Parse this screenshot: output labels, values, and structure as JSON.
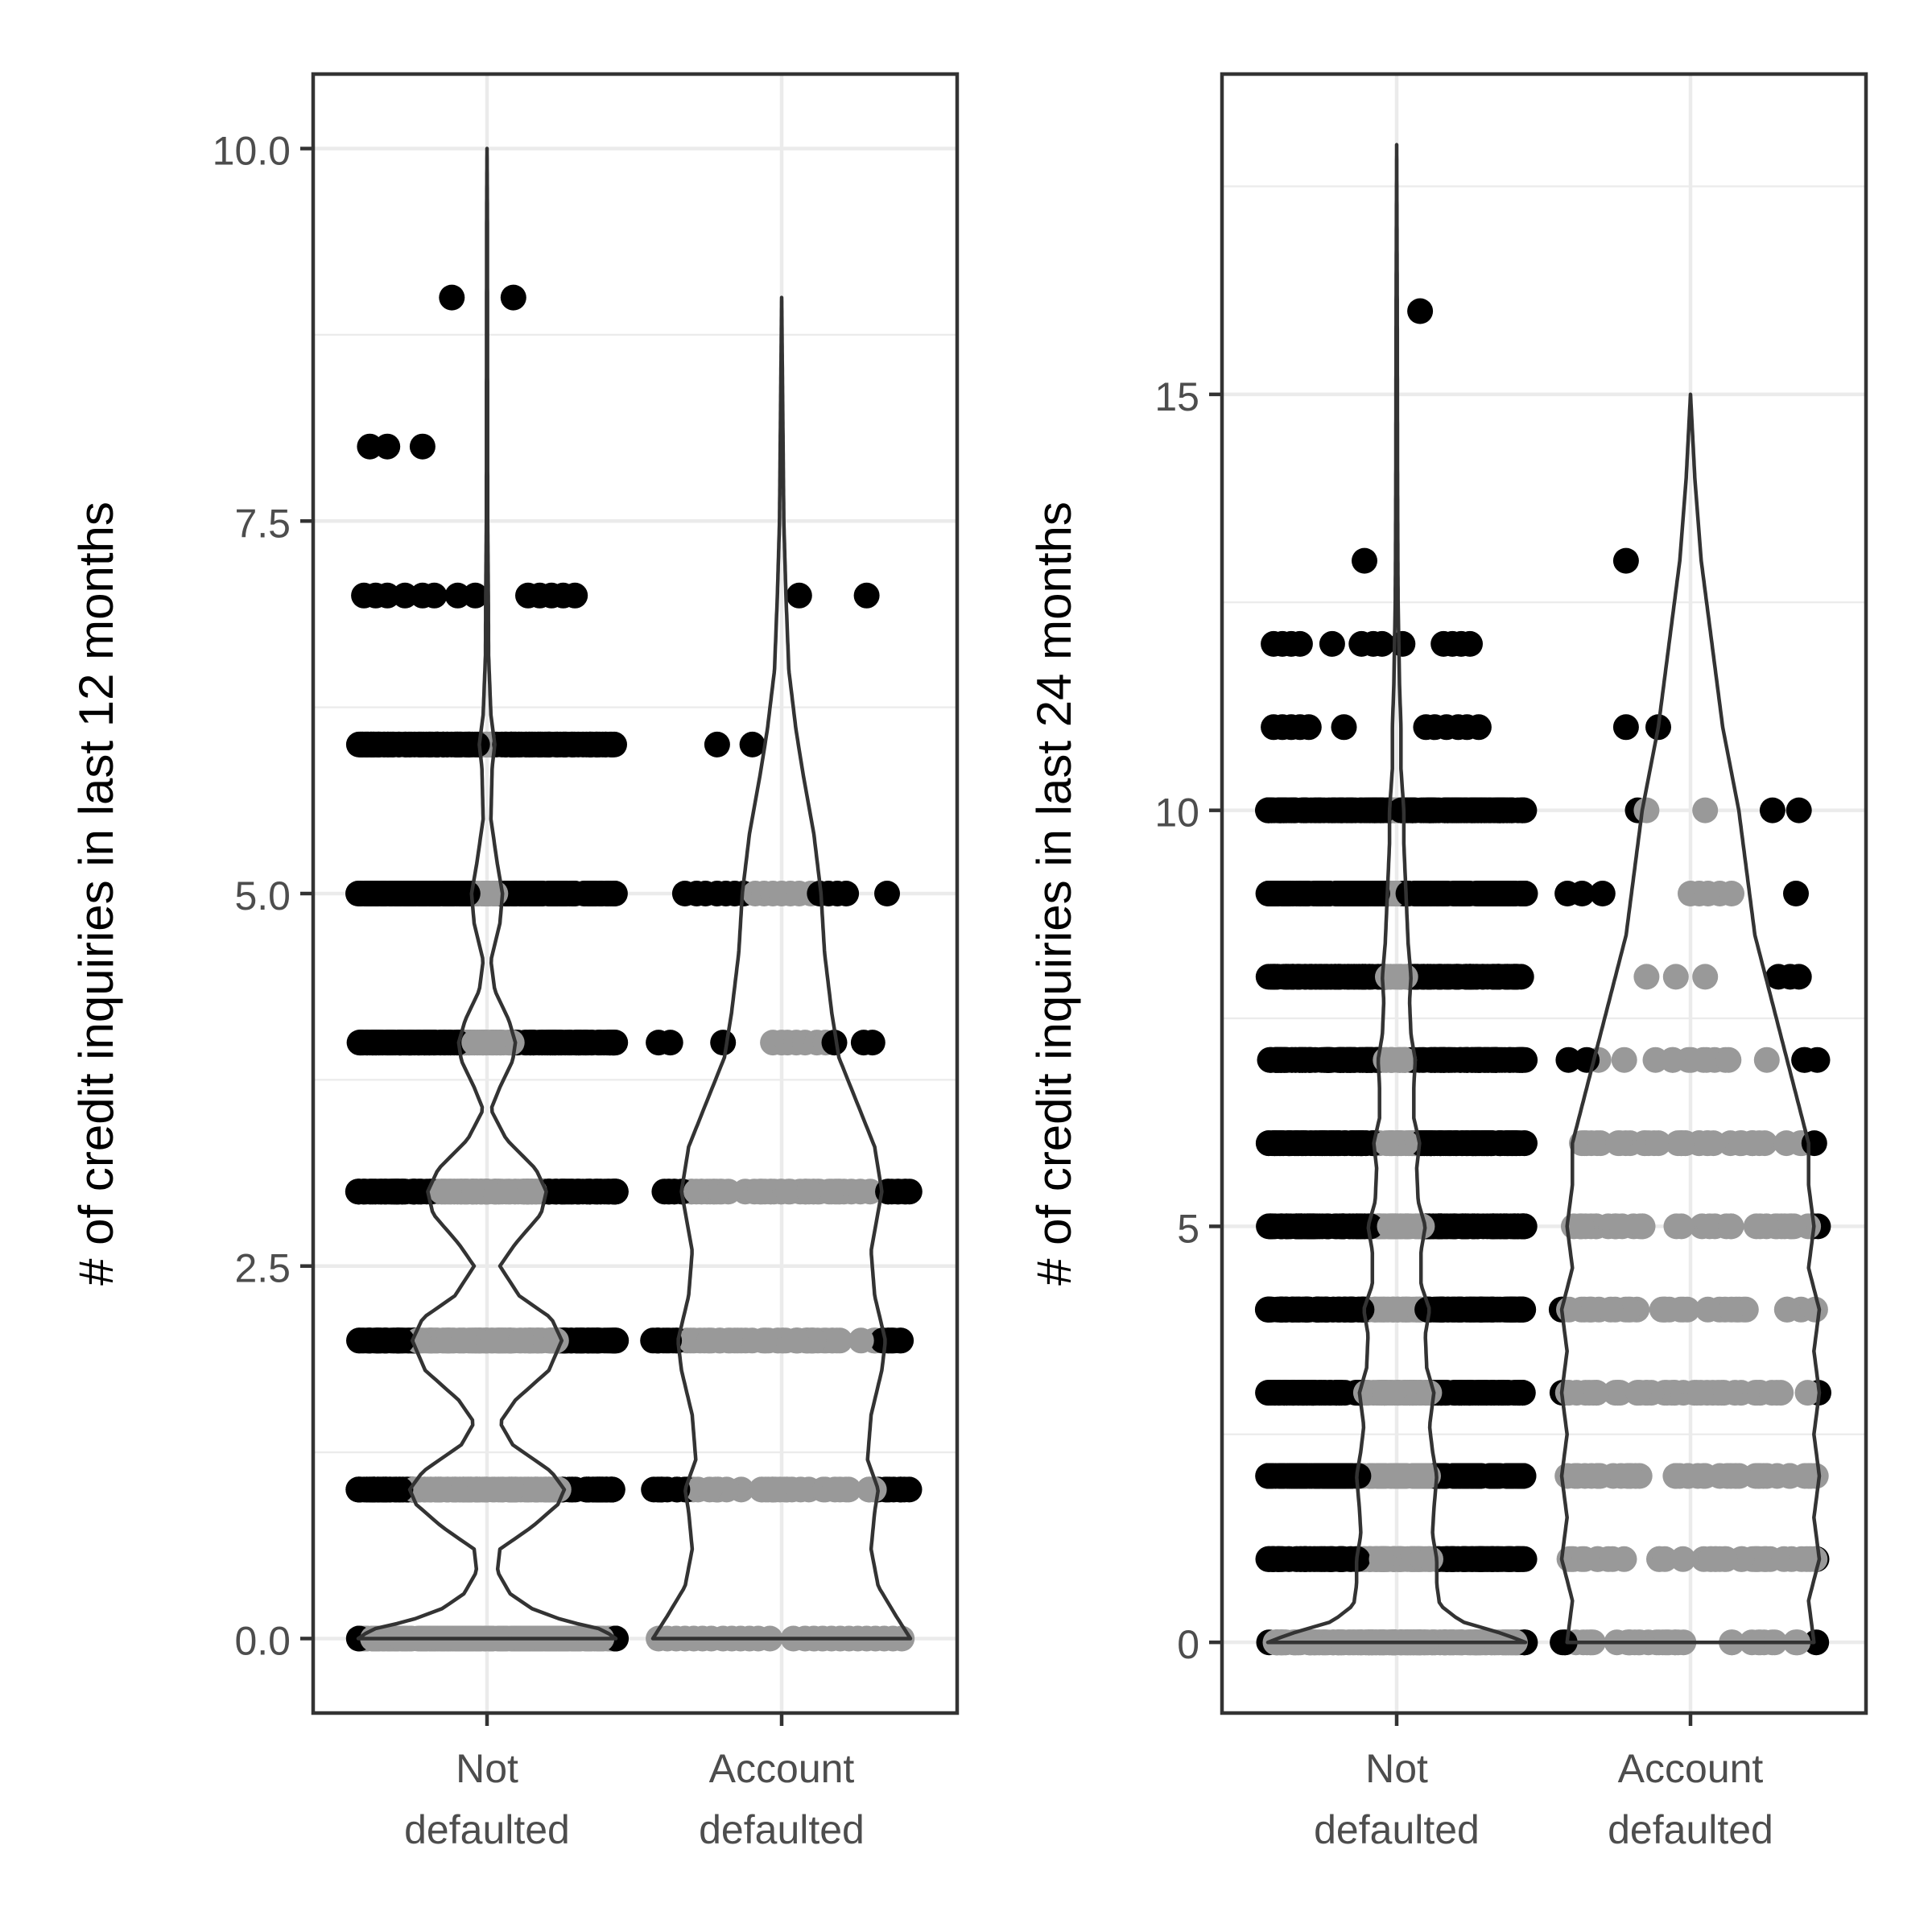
{
  "chart_data": [
    {
      "type": "violin",
      "panel": "left",
      "ylabel": "# of credit inquiries in last 12 months",
      "xlabel": "",
      "categories": [
        "Not\ndefaulted",
        "Account\ndefaulted"
      ],
      "ylim": [
        -0.5,
        10.5
      ],
      "yticks": [
        0.0,
        2.5,
        5.0,
        7.5,
        10.0
      ],
      "ytick_labels": [
        "0.0",
        "2.5",
        "5.0",
        "7.5",
        "10.0"
      ],
      "grid": true,
      "groups": [
        {
          "name": "Not\ndefaulted",
          "violin_max": 10,
          "density": [
            [
              0,
              1.0
            ],
            [
              0.06,
              0.9
            ],
            [
              0.12,
              0.6
            ],
            [
              0.2,
              0.35
            ],
            [
              0.3,
              0.18
            ],
            [
              0.45,
              0.08
            ],
            [
              0.6,
              0.1
            ],
            [
              0.75,
              0.35
            ],
            [
              0.9,
              0.55
            ],
            [
              1.0,
              0.6
            ],
            [
              1.12,
              0.5
            ],
            [
              1.3,
              0.2
            ],
            [
              1.45,
              0.1
            ],
            [
              1.6,
              0.22
            ],
            [
              1.8,
              0.48
            ],
            [
              2.0,
              0.58
            ],
            [
              2.15,
              0.5
            ],
            [
              2.3,
              0.25
            ],
            [
              2.5,
              0.1
            ],
            [
              2.65,
              0.22
            ],
            [
              2.85,
              0.42
            ],
            [
              3.0,
              0.46
            ],
            [
              3.15,
              0.38
            ],
            [
              3.35,
              0.15
            ],
            [
              3.55,
              0.03
            ],
            [
              3.7,
              0.1
            ],
            [
              3.88,
              0.2
            ],
            [
              4.0,
              0.22
            ],
            [
              4.15,
              0.17
            ],
            [
              4.35,
              0.06
            ],
            [
              4.55,
              0.03
            ],
            [
              4.8,
              0.1
            ],
            [
              5.0,
              0.12
            ],
            [
              5.2,
              0.08
            ],
            [
              5.5,
              0.03
            ],
            [
              5.85,
              0.04
            ],
            [
              6.0,
              0.06
            ],
            [
              6.2,
              0.03
            ],
            [
              6.6,
              0.012
            ],
            [
              7.0,
              0.01
            ],
            [
              7.5,
              0.005
            ],
            [
              8.5,
              0.004
            ],
            [
              9.5,
              0.003
            ],
            [
              10.0,
              0.0
            ]
          ],
          "points": [
            {
              "y": 0,
              "count": 200
            },
            {
              "y": 1,
              "count": 200
            },
            {
              "y": 2,
              "count": 200
            },
            {
              "y": 3,
              "count": 200
            },
            {
              "y": 4,
              "count": 200
            },
            {
              "y": 5,
              "count": 200
            },
            {
              "y": 6,
              "count": 150
            },
            {
              "y": 7,
              "x_offsets": [
                -0.42,
                -0.38,
                -0.34,
                -0.28,
                -0.22,
                -0.18,
                -0.1,
                -0.04,
                0.14,
                0.18,
                0.22,
                0.26,
                0.3
              ]
            },
            {
              "y": 8,
              "x_offsets": [
                -0.4,
                -0.34,
                -0.22
              ]
            },
            {
              "y": 9,
              "x_offsets": [
                -0.12,
                0.09
              ]
            }
          ]
        },
        {
          "name": "Account\ndefaulted",
          "violin_max": 9,
          "density": [
            [
              0,
              0.36
            ],
            [
              0.15,
              0.32
            ],
            [
              0.35,
              0.27
            ],
            [
              0.6,
              0.25
            ],
            [
              0.85,
              0.26
            ],
            [
              1.0,
              0.27
            ],
            [
              1.2,
              0.24
            ],
            [
              1.5,
              0.25
            ],
            [
              1.8,
              0.28
            ],
            [
              2.0,
              0.29
            ],
            [
              2.3,
              0.26
            ],
            [
              2.6,
              0.25
            ],
            [
              3.0,
              0.28
            ],
            [
              3.3,
              0.26
            ],
            [
              3.6,
              0.21
            ],
            [
              3.9,
              0.16
            ],
            [
              4.2,
              0.14
            ],
            [
              4.6,
              0.12
            ],
            [
              5.0,
              0.11
            ],
            [
              5.4,
              0.09
            ],
            [
              5.8,
              0.06
            ],
            [
              6.1,
              0.04
            ],
            [
              6.5,
              0.02
            ],
            [
              7.0,
              0.012
            ],
            [
              7.5,
              0.006
            ],
            [
              8.0,
              0.004
            ],
            [
              9.0,
              0.0
            ]
          ],
          "points": [
            {
              "y": 0,
              "x_offsets": [
                -0.42,
                -0.39,
                -0.36,
                -0.33,
                -0.3,
                -0.27,
                -0.24,
                -0.2,
                -0.17,
                -0.14,
                -0.11,
                -0.08,
                -0.04,
                0.04,
                0.08,
                0.11,
                0.14,
                0.17,
                0.2,
                0.23,
                0.26,
                0.29,
                0.32,
                0.35,
                0.38,
                0.41
              ]
            },
            {
              "y": 1,
              "count": 55
            },
            {
              "y": 2,
              "count": 70
            },
            {
              "y": 3,
              "count": 60
            },
            {
              "y": 4,
              "x_offsets": [
                -0.42,
                -0.38,
                -0.2,
                -0.03,
                0.0,
                0.02,
                0.05,
                0.08,
                0.12,
                0.15,
                0.18,
                0.28,
                0.31
              ]
            },
            {
              "y": 5,
              "x_offsets": [
                -0.33,
                -0.29,
                -0.26,
                -0.22,
                -0.19,
                -0.16,
                -0.13,
                -0.09,
                -0.06,
                -0.03,
                0.0,
                0.03,
                0.06,
                0.1,
                0.13,
                0.16,
                0.19,
                0.22,
                0.36
              ]
            },
            {
              "y": 6,
              "x_offsets": [
                -0.22,
                -0.1
              ]
            },
            {
              "y": 7,
              "x_offsets": [
                0.06,
                0.29
              ]
            }
          ]
        }
      ]
    },
    {
      "type": "violin",
      "panel": "right",
      "ylabel": "# of credit inquiries in last 24 months",
      "xlabel": "",
      "categories": [
        "Not\ndefaulted",
        "Account\ndefaulted"
      ],
      "ylim": [
        -0.85,
        18.85
      ],
      "yticks": [
        0,
        5,
        10,
        15
      ],
      "ytick_labels": [
        "0",
        "5",
        "10",
        "15"
      ],
      "grid": true,
      "groups": [
        {
          "name": "Not\ndefaulted",
          "violin_max": 18,
          "density": [
            [
              0,
              0.9
            ],
            [
              0.1,
              0.75
            ],
            [
              0.25,
              0.45
            ],
            [
              0.45,
              0.3
            ],
            [
              0.7,
              0.28
            ],
            [
              1.0,
              0.28
            ],
            [
              1.3,
              0.25
            ],
            [
              1.6,
              0.26
            ],
            [
              2.0,
              0.28
            ],
            [
              2.3,
              0.25
            ],
            [
              2.6,
              0.23
            ],
            [
              3.0,
              0.26
            ],
            [
              3.3,
              0.21
            ],
            [
              3.7,
              0.2
            ],
            [
              4.0,
              0.23
            ],
            [
              4.3,
              0.17
            ],
            [
              4.7,
              0.17
            ],
            [
              5.0,
              0.2
            ],
            [
              5.3,
              0.15
            ],
            [
              5.7,
              0.14
            ],
            [
              6.0,
              0.16
            ],
            [
              6.3,
              0.12
            ],
            [
              6.7,
              0.12
            ],
            [
              7.0,
              0.13
            ],
            [
              7.3,
              0.1
            ],
            [
              7.7,
              0.09
            ],
            [
              8.0,
              0.1
            ],
            [
              8.4,
              0.08
            ],
            [
              8.8,
              0.07
            ],
            [
              9.2,
              0.06
            ],
            [
              9.6,
              0.05
            ],
            [
              10.0,
              0.05
            ],
            [
              10.5,
              0.03
            ],
            [
              11.0,
              0.03
            ],
            [
              11.5,
              0.02
            ],
            [
              12.0,
              0.015
            ],
            [
              12.5,
              0.01
            ],
            [
              13.0,
              0.008
            ],
            [
              14.0,
              0.006
            ],
            [
              16.0,
              0.004
            ],
            [
              18.0,
              0.0
            ]
          ],
          "points": [
            {
              "y": 0,
              "count": 220
            },
            {
              "y": 1,
              "count": 200
            },
            {
              "y": 2,
              "count": 200
            },
            {
              "y": 3,
              "count": 220
            },
            {
              "y": 4,
              "count": 210
            },
            {
              "y": 5,
              "count": 210
            },
            {
              "y": 6,
              "count": 210
            },
            {
              "y": 7,
              "count": 210
            },
            {
              "y": 8,
              "count": 190
            },
            {
              "y": 9,
              "count": 190
            },
            {
              "y": 10,
              "count": 200
            },
            {
              "y": 11,
              "x_offsets": [
                -0.42,
                -0.39,
                -0.36,
                -0.33,
                -0.3,
                -0.18,
                0.1,
                0.13,
                0.17,
                0.21,
                0.24,
                0.28
              ]
            },
            {
              "y": 12,
              "x_offsets": [
                -0.42,
                -0.39,
                -0.36,
                -0.33,
                -0.22,
                -0.12,
                -0.08,
                -0.05,
                0.02,
                0.16,
                0.19,
                0.22,
                0.25
              ]
            },
            {
              "y": 13,
              "x_offsets": [
                -0.11
              ]
            },
            {
              "y": 16,
              "x_offsets": [
                0.08
              ]
            }
          ]
        },
        {
          "name": "Account\ndefaulted",
          "violin_max": 15,
          "density": [
            [
              0,
              0.23
            ],
            [
              0.5,
              0.22
            ],
            [
              1.0,
              0.24
            ],
            [
              1.5,
              0.23
            ],
            [
              2.0,
              0.24
            ],
            [
              2.5,
              0.23
            ],
            [
              3.0,
              0.24
            ],
            [
              3.5,
              0.23
            ],
            [
              4.0,
              0.24
            ],
            [
              4.5,
              0.22
            ],
            [
              5.0,
              0.23
            ],
            [
              5.5,
              0.22
            ],
            [
              6.0,
              0.22
            ],
            [
              6.5,
              0.2
            ],
            [
              7.0,
              0.18
            ],
            [
              7.5,
              0.16
            ],
            [
              8.0,
              0.14
            ],
            [
              8.5,
              0.12
            ],
            [
              9.0,
              0.11
            ],
            [
              9.5,
              0.1
            ],
            [
              10.0,
              0.09
            ],
            [
              11.0,
              0.06
            ],
            [
              12.0,
              0.04
            ],
            [
              12.5,
              0.03
            ],
            [
              13.0,
              0.02
            ],
            [
              14.0,
              0.008
            ],
            [
              15.0,
              0.0
            ]
          ],
          "points": [
            {
              "y": 0,
              "count": 40
            },
            {
              "y": 1,
              "count": 40
            },
            {
              "y": 2,
              "count": 40
            },
            {
              "y": 3,
              "count": 45
            },
            {
              "y": 4,
              "count": 35
            },
            {
              "y": 5,
              "count": 40
            },
            {
              "y": 6,
              "count": 38
            },
            {
              "y": 7,
              "count": 18
            },
            {
              "y": 8,
              "x_offsets": [
                -0.15,
                -0.05,
                0.05,
                0.3,
                0.34,
                0.37
              ]
            },
            {
              "y": 9,
              "x_offsets": [
                -0.42,
                -0.37,
                -0.3,
                0.0,
                0.03,
                0.06,
                0.1,
                0.14,
                0.36
              ]
            },
            {
              "y": 10,
              "x_offsets": [
                -0.18,
                -0.15,
                0.05,
                0.28,
                0.37
              ]
            },
            {
              "y": 11,
              "x_offsets": [
                -0.22,
                -0.11
              ]
            },
            {
              "y": 13,
              "x_offsets": [
                -0.22
              ]
            }
          ]
        }
      ]
    }
  ]
}
